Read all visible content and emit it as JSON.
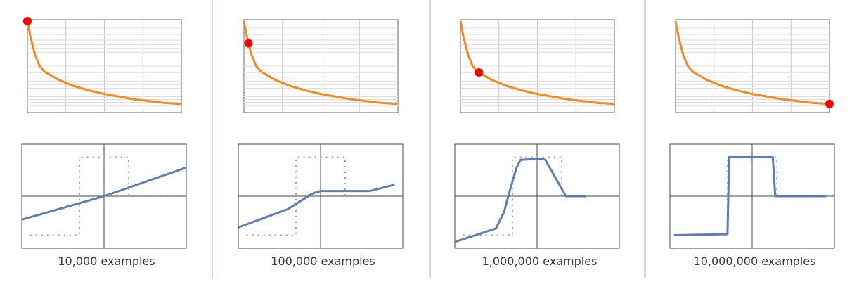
{
  "colors": {
    "loss_line": "#f28a1e",
    "marker": "#ff0000",
    "model_line": "#5b7db8",
    "target_dots": "#999999",
    "grid": "#c8c8c8",
    "frame": "#555555"
  },
  "chart_data": [
    {
      "type": "line",
      "examples_label": "10,000 examples",
      "loss_curve": {
        "x": [
          0,
          0.02,
          0.05,
          0.08,
          0.11,
          0.15,
          0.2,
          0.3,
          0.4,
          0.5,
          0.6,
          0.7,
          0.8,
          0.9,
          1.0
        ],
        "y": [
          1.0,
          0.82,
          0.62,
          0.5,
          0.44,
          0.4,
          0.35,
          0.28,
          0.23,
          0.19,
          0.16,
          0.13,
          0.11,
          0.09,
          0.08
        ],
        "marker_x": 0.0
      },
      "model": {
        "x": [
          -1.0,
          0.0,
          1.0
        ],
        "y": [
          -0.45,
          0.0,
          0.55
        ]
      },
      "target": {
        "x": [
          -0.9,
          -0.3,
          -0.3,
          0.3,
          0.3,
          0.9
        ],
        "y": [
          -0.75,
          -0.75,
          0.75,
          0.75,
          0.0,
          0.0
        ]
      }
    },
    {
      "type": "line",
      "examples_label": "100,000 examples",
      "loss_curve": {
        "x": [
          0,
          0.02,
          0.05,
          0.08,
          0.11,
          0.15,
          0.2,
          0.3,
          0.4,
          0.5,
          0.6,
          0.7,
          0.8,
          0.9,
          1.0
        ],
        "y": [
          1.0,
          0.82,
          0.62,
          0.5,
          0.44,
          0.4,
          0.35,
          0.28,
          0.23,
          0.19,
          0.16,
          0.13,
          0.11,
          0.09,
          0.08
        ],
        "marker_x": 0.03
      },
      "model": {
        "x": [
          -1.0,
          -0.4,
          -0.1,
          0.0,
          0.6,
          0.9
        ],
        "y": [
          -0.6,
          -0.25,
          0.05,
          0.1,
          0.1,
          0.22
        ]
      },
      "target": {
        "x": [
          -0.9,
          -0.3,
          -0.3,
          0.3,
          0.3,
          0.9
        ],
        "y": [
          -0.75,
          -0.75,
          0.75,
          0.75,
          0.0,
          0.0
        ]
      }
    },
    {
      "type": "line",
      "examples_label": "1,000,000 examples",
      "loss_curve": {
        "x": [
          0,
          0.02,
          0.05,
          0.08,
          0.11,
          0.15,
          0.2,
          0.3,
          0.4,
          0.5,
          0.6,
          0.7,
          0.8,
          0.9,
          1.0
        ],
        "y": [
          1.0,
          0.82,
          0.62,
          0.5,
          0.44,
          0.4,
          0.35,
          0.28,
          0.23,
          0.19,
          0.16,
          0.13,
          0.11,
          0.09,
          0.08
        ],
        "marker_x": 0.12
      },
      "model": {
        "x": [
          -1.0,
          -0.5,
          -0.4,
          -0.35,
          -0.25,
          -0.2,
          0.05,
          0.1,
          0.35,
          0.6
        ],
        "y": [
          -0.88,
          -0.62,
          -0.3,
          0.0,
          0.55,
          0.7,
          0.72,
          0.7,
          0.0,
          0.0
        ]
      },
      "target": {
        "x": [
          -0.9,
          -0.3,
          -0.3,
          0.3,
          0.3,
          0.9
        ],
        "y": [
          -0.75,
          -0.75,
          0.75,
          0.75,
          0.0,
          0.0
        ]
      }
    },
    {
      "type": "line",
      "examples_label": "10,000,000 examples",
      "loss_curve": {
        "x": [
          0,
          0.02,
          0.05,
          0.08,
          0.11,
          0.15,
          0.2,
          0.3,
          0.4,
          0.5,
          0.6,
          0.7,
          0.8,
          0.9,
          1.0
        ],
        "y": [
          1.0,
          0.82,
          0.62,
          0.5,
          0.44,
          0.4,
          0.35,
          0.28,
          0.23,
          0.19,
          0.16,
          0.13,
          0.11,
          0.09,
          0.08
        ],
        "marker_x": 1.0
      },
      "model": {
        "x": [
          -0.95,
          -0.3,
          -0.28,
          0.25,
          0.28,
          0.9
        ],
        "y": [
          -0.75,
          -0.73,
          0.75,
          0.75,
          0.0,
          0.0
        ]
      },
      "target": {
        "x": [
          -0.9,
          -0.3,
          -0.3,
          0.3,
          0.3,
          0.9
        ],
        "y": [
          -0.75,
          -0.75,
          0.75,
          0.75,
          0.0,
          0.0
        ]
      }
    }
  ]
}
